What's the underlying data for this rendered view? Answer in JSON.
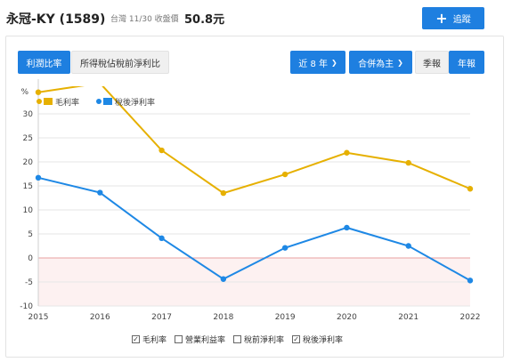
{
  "header": {
    "stock_title": "永冠-KY (1589)",
    "market_date": "台灣 11/30 收盤價",
    "price": "50.8元",
    "track_label": "追蹤",
    "track_icon": "plus-icon"
  },
  "toolbar": {
    "tab_profit_ratio": "利潤比率",
    "tab_tax_ratio": "所得稅佔稅前淨利比",
    "period_select": "近 8 年",
    "consolidation_select": "合併為主",
    "quarterly": "季報",
    "annual": "年報",
    "active_tab": "利潤比率",
    "active_period": "年報"
  },
  "chart_data": {
    "type": "line",
    "ylabel": "%",
    "x": [
      "2015",
      "2016",
      "2017",
      "2018",
      "2019",
      "2020",
      "2021",
      "2022"
    ],
    "ylim": [
      -10,
      35
    ],
    "yticks": [
      -10,
      -5,
      0,
      5,
      10,
      15,
      20,
      25,
      30
    ],
    "grid": true,
    "legend_position": "top-left",
    "series": [
      {
        "name": "毛利率",
        "color": "#e6b000",
        "values": [
          34.5,
          36.4,
          22.4,
          13.5,
          17.4,
          21.9,
          19.8,
          14.4
        ]
      },
      {
        "name": "稅後淨利率",
        "color": "#1e88e5",
        "values": [
          16.7,
          13.6,
          4.1,
          -4.4,
          2.1,
          6.3,
          2.5,
          -4.7
        ]
      }
    ],
    "zero_line_color": "#e8a0a0",
    "negative_fill_color": "#fdf1f1"
  },
  "legend_checkboxes": [
    {
      "label": "毛利率",
      "checked": true
    },
    {
      "label": "營業利益率",
      "checked": false
    },
    {
      "label": "稅前淨利率",
      "checked": false
    },
    {
      "label": "稅後淨利率",
      "checked": true
    }
  ]
}
